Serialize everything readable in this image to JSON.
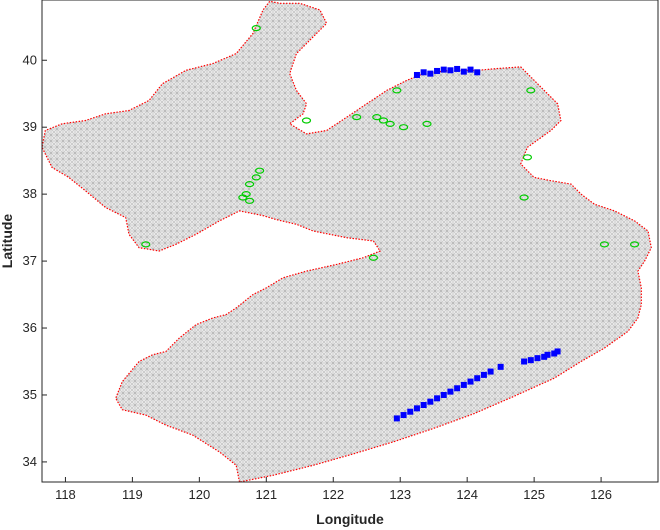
{
  "chart_data": {
    "type": "scatter",
    "xlabel": "Longitude",
    "ylabel": "Latitude",
    "xlim": [
      117.65,
      126.85
    ],
    "ylim": [
      33.7,
      40.9
    ],
    "xticks": [
      118,
      119,
      120,
      121,
      122,
      123,
      124,
      125,
      126
    ],
    "yticks": [
      34,
      35,
      36,
      37,
      38,
      39,
      40
    ],
    "grid": false,
    "legend": "none",
    "colors": {
      "mesh_fill": "#d4d4d4",
      "mesh_lines": "#9a9a9a",
      "coastline": "#ff0000",
      "islands": "#00cc00",
      "open_boundary": "#0000ff"
    },
    "coastline": [
      [
        120.6,
        33.7
      ],
      [
        120.55,
        33.95
      ],
      [
        120.3,
        34.15
      ],
      [
        119.9,
        34.4
      ],
      [
        119.5,
        34.55
      ],
      [
        119.2,
        34.7
      ],
      [
        118.85,
        34.78
      ],
      [
        118.75,
        34.95
      ],
      [
        118.85,
        35.2
      ],
      [
        119.1,
        35.5
      ],
      [
        119.3,
        35.6
      ],
      [
        119.5,
        35.65
      ],
      [
        119.7,
        35.85
      ],
      [
        119.95,
        36.05
      ],
      [
        120.2,
        36.15
      ],
      [
        120.4,
        36.2
      ],
      [
        120.55,
        36.3
      ],
      [
        120.8,
        36.5
      ],
      [
        121.0,
        36.6
      ],
      [
        121.25,
        36.75
      ],
      [
        121.6,
        36.85
      ],
      [
        122.05,
        36.95
      ],
      [
        122.45,
        37.05
      ],
      [
        122.7,
        37.15
      ],
      [
        122.6,
        37.3
      ],
      [
        122.2,
        37.35
      ],
      [
        121.7,
        37.45
      ],
      [
        121.45,
        37.55
      ],
      [
        121.15,
        37.62
      ],
      [
        120.95,
        37.68
      ],
      [
        120.6,
        37.75
      ],
      [
        120.3,
        37.6
      ],
      [
        119.95,
        37.4
      ],
      [
        119.65,
        37.25
      ],
      [
        119.4,
        37.15
      ],
      [
        119.1,
        37.2
      ],
      [
        118.95,
        37.4
      ],
      [
        118.9,
        37.65
      ],
      [
        118.6,
        37.8
      ],
      [
        118.3,
        38.05
      ],
      [
        118.05,
        38.25
      ],
      [
        117.8,
        38.4
      ],
      [
        117.65,
        38.7
      ],
      [
        117.7,
        38.95
      ],
      [
        117.95,
        39.05
      ],
      [
        118.3,
        39.1
      ],
      [
        118.6,
        39.2
      ],
      [
        118.95,
        39.25
      ],
      [
        119.25,
        39.4
      ],
      [
        119.45,
        39.65
      ],
      [
        119.8,
        39.85
      ],
      [
        120.2,
        39.95
      ],
      [
        120.55,
        40.1
      ],
      [
        120.8,
        40.4
      ],
      [
        120.95,
        40.75
      ],
      [
        121.05,
        40.88
      ],
      [
        121.2,
        40.85
      ],
      [
        121.5,
        40.85
      ],
      [
        121.8,
        40.75
      ],
      [
        121.9,
        40.55
      ],
      [
        121.65,
        40.3
      ],
      [
        121.45,
        40.1
      ],
      [
        121.35,
        39.8
      ],
      [
        121.45,
        39.55
      ],
      [
        121.6,
        39.35
      ],
      [
        121.55,
        39.2
      ],
      [
        121.35,
        39.05
      ],
      [
        121.6,
        38.9
      ],
      [
        121.9,
        38.95
      ],
      [
        122.2,
        39.15
      ],
      [
        122.5,
        39.35
      ],
      [
        122.8,
        39.55
      ],
      [
        123.1,
        39.7
      ],
      [
        123.35,
        39.8
      ],
      [
        123.75,
        39.85
      ],
      [
        124.15,
        39.85
      ],
      [
        124.5,
        39.88
      ],
      [
        124.8,
        39.9
      ],
      [
        125.05,
        39.65
      ],
      [
        125.2,
        39.5
      ],
      [
        125.35,
        39.35
      ],
      [
        125.4,
        39.1
      ],
      [
        125.25,
        38.95
      ],
      [
        124.9,
        38.7
      ],
      [
        124.8,
        38.45
      ],
      [
        125.0,
        38.25
      ],
      [
        125.25,
        38.2
      ],
      [
        125.55,
        38.15
      ],
      [
        125.7,
        38.0
      ],
      [
        125.9,
        37.85
      ],
      [
        126.2,
        37.75
      ],
      [
        126.5,
        37.6
      ],
      [
        126.7,
        37.45
      ],
      [
        126.75,
        37.2
      ],
      [
        126.65,
        37.0
      ],
      [
        126.55,
        36.85
      ],
      [
        126.6,
        36.6
      ],
      [
        126.6,
        36.35
      ],
      [
        126.55,
        36.15
      ],
      [
        126.4,
        35.95
      ],
      [
        126.05,
        35.7
      ],
      [
        125.7,
        35.5
      ],
      [
        125.3,
        35.25
      ],
      [
        124.7,
        34.98
      ],
      [
        124.1,
        34.72
      ],
      [
        123.5,
        34.5
      ],
      [
        122.9,
        34.3
      ],
      [
        122.3,
        34.12
      ],
      [
        121.7,
        33.95
      ],
      [
        121.1,
        33.8
      ]
    ],
    "open_boundary_east_x": [
      122.95,
      123.05,
      123.15,
      123.25,
      123.35,
      123.45,
      123.55,
      123.65,
      123.75,
      123.85,
      123.95,
      124.05,
      124.15,
      124.25,
      124.35,
      124.5,
      124.85,
      124.95,
      125.05,
      125.15,
      125.2,
      125.3,
      125.35
    ],
    "open_boundary_east_y": [
      34.65,
      34.7,
      34.75,
      34.8,
      34.85,
      34.9,
      34.95,
      35.0,
      35.05,
      35.1,
      35.15,
      35.2,
      35.25,
      35.3,
      35.35,
      35.42,
      35.5,
      35.52,
      35.55,
      35.57,
      35.6,
      35.62,
      35.65
    ],
    "open_boundary_north_x": [
      123.25,
      123.35,
      123.45,
      123.55,
      123.65,
      123.75,
      123.85,
      123.95,
      124.05,
      124.15
    ],
    "open_boundary_north_y": [
      39.78,
      39.82,
      39.8,
      39.84,
      39.86,
      39.85,
      39.87,
      39.83,
      39.86,
      39.82
    ],
    "islands": [
      [
        120.85,
        40.48
      ],
      [
        121.6,
        39.1
      ],
      [
        119.2,
        37.25
      ],
      [
        120.75,
        38.15
      ],
      [
        120.85,
        38.25
      ],
      [
        120.9,
        38.35
      ],
      [
        120.7,
        38.0
      ],
      [
        120.65,
        37.95
      ],
      [
        120.75,
        37.9
      ],
      [
        122.35,
        39.15
      ],
      [
        122.65,
        39.15
      ],
      [
        122.75,
        39.1
      ],
      [
        122.85,
        39.05
      ],
      [
        122.95,
        39.55
      ],
      [
        123.05,
        39.0
      ],
      [
        123.4,
        39.05
      ],
      [
        124.95,
        39.55
      ],
      [
        124.9,
        38.55
      ],
      [
        124.85,
        37.95
      ],
      [
        126.05,
        37.25
      ],
      [
        126.5,
        37.25
      ],
      [
        122.6,
        37.05
      ]
    ]
  }
}
